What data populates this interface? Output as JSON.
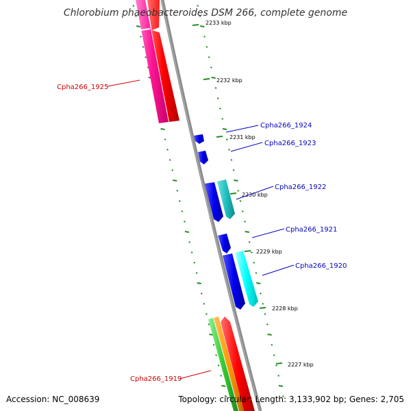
{
  "title": "Chlorobium phaeobacteroides DSM 266, complete genome",
  "footer": {
    "accession": "Accession: NC_008639",
    "summary": "Topology: circular; Length: 3,133,902 bp; Genes: 2,705"
  },
  "colors": {
    "backbone": "#8c8c8c",
    "ticks": "#228b22",
    "label_red": "#cc0000",
    "label_blue": "#0000bb"
  },
  "kbp_ticks": [
    {
      "kbp": 2233,
      "label": "2233 kbp"
    },
    {
      "kbp": 2232,
      "label": "2232 kbp"
    },
    {
      "kbp": 2231,
      "label": "2231 kbp"
    },
    {
      "kbp": 2230,
      "label": "2230 kbp"
    },
    {
      "kbp": 2229,
      "label": "2229 kbp"
    },
    {
      "kbp": 2228,
      "label": "2228 kbp"
    },
    {
      "kbp": 2227,
      "label": "2227 kbp"
    }
  ],
  "gene_labels": [
    {
      "name": "Cpha266_1925",
      "color": "#cc0000"
    },
    {
      "name": "Cpha266_1924",
      "color": "#0000bb"
    },
    {
      "name": "Cpha266_1923",
      "color": "#0000bb"
    },
    {
      "name": "Cpha266_1922",
      "color": "#0000bb"
    },
    {
      "name": "Cpha266_1921",
      "color": "#0000bb"
    },
    {
      "name": "Cpha266_1920",
      "color": "#0000bb"
    },
    {
      "name": "Cpha266_1919",
      "color": "#cc0000"
    }
  ]
}
